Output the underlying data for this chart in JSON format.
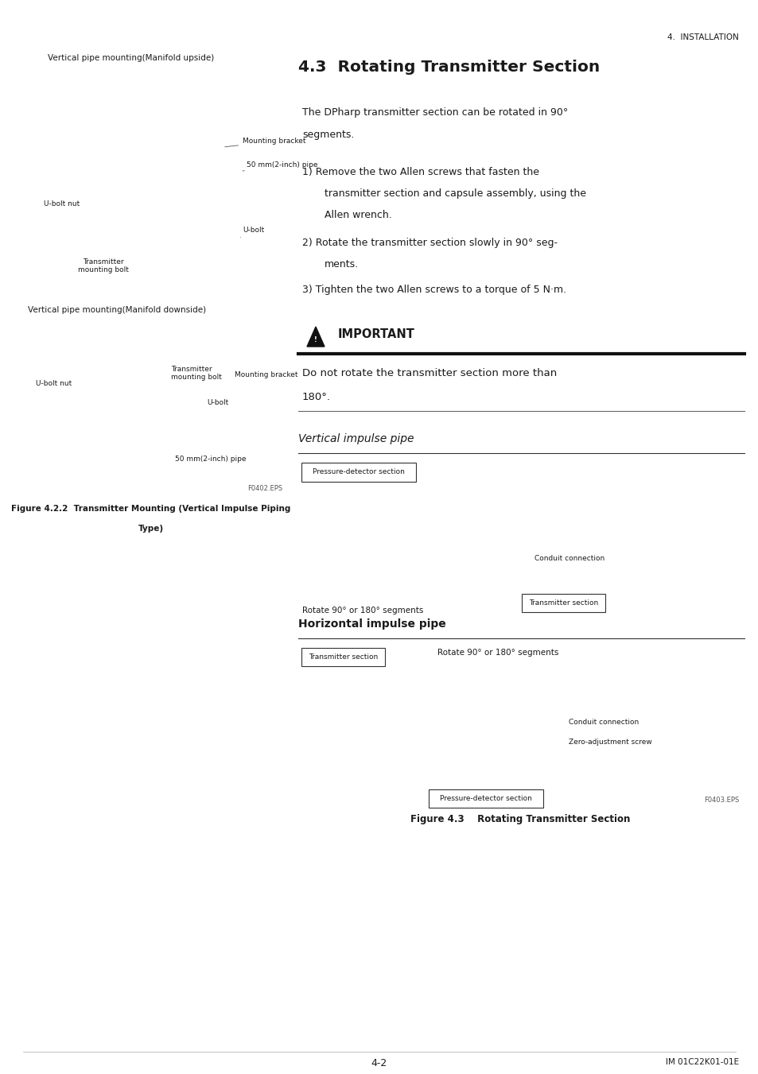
{
  "page_width": 9.54,
  "page_height": 13.51,
  "dpi": 100,
  "bg_color": "#ffffff",
  "text_color": "#1a1a1a",
  "header_right": "4.  INSTALLATION",
  "section_title": "4.3  Rotating Transmitter Section",
  "left_label_top": "Vertical pipe mounting(Manifold upside)",
  "left_label_mid": "Vertical pipe mounting(Manifold downside)",
  "figure_caption_left_line1": "Figure 4.2.2  Transmitter Mounting (Vertical Impulse Piping",
  "figure_caption_left_line2": "Type)",
  "body_line1": "The DPharp transmitter section can be rotated in 90°",
  "body_line2": "segments.",
  "step1_line1": "1) Remove the two Allen screws that fasten the",
  "step1_line2": "    transmitter section and capsule assembly, using the",
  "step1_line3": "    Allen wrench.",
  "step2_line1": "2) Rotate the transmitter section slowly in 90° seg-",
  "step2_line2": "    ments.",
  "step3_line1": "3) Tighten the two Allen screws to a torque of 5 N·m.",
  "important_title": "IMPORTANT",
  "important_body1": "Do not rotate the transmitter section more than",
  "important_body2": "180°.",
  "vert_impulse_title": "Vertical impulse pipe",
  "horiz_impulse_title": "Horizontal impulse pipe",
  "label_pds_top": "Pressure-detector section",
  "label_conduit1": "Conduit connection",
  "label_trans_sec1": "Transmitter section",
  "label_rotate1": "Rotate 90° or 180° segments",
  "label_trans_sec2": "Transmitter section",
  "label_rotate2": "Rotate 90° or 180° segments",
  "label_conduit2": "Conduit connection",
  "label_zero_adj": "Zero-adjustment screw",
  "label_pds_bot": "Pressure-detector section",
  "figure_f0402": "F0402.EPS",
  "figure_f0403": "F0403.EPS",
  "figure_caption_right": "Figure 4.3    Rotating Transmitter Section",
  "footer_center": "4-2",
  "footer_right": "IM 01C22K01-01E",
  "annot_mounting_bracket": "Mounting bracket",
  "annot_50mm_pipe": "50 mm(2-inch) pipe",
  "annot_ubolt_nut": "U-bolt nut",
  "annot_ubolt": "U-bolt",
  "annot_trans_bolt": "Transmitter\nmounting bolt",
  "annot2_ubolt_nut": "U-bolt nut",
  "annot2_trans_bolt": "Transmitter\nmounting bolt",
  "annot2_mounting_bracket": "Mounting bracket",
  "annot2_ubolt": "U-bolt",
  "annot2_50mm_pipe": "50 mm(2-inch) pipe"
}
